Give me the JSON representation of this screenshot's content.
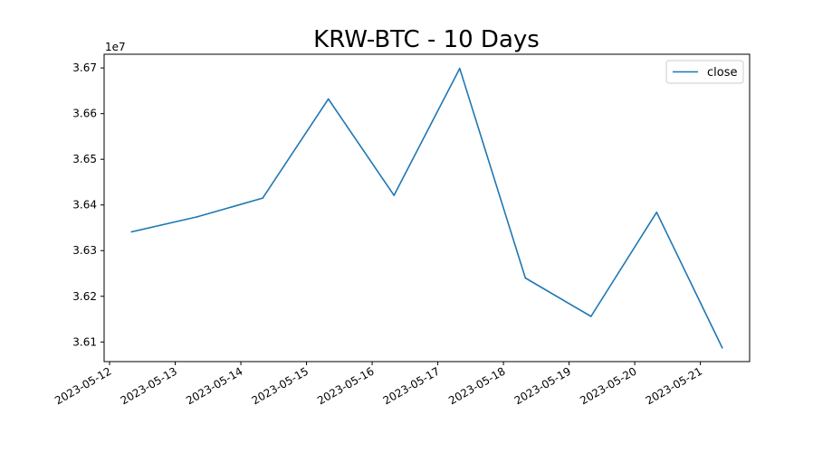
{
  "chart_data": {
    "type": "line",
    "title": "KRW-BTC - 10 Days",
    "xlabel": "",
    "ylabel": "",
    "y_offset_label": "1e7",
    "y_multiplier": 10000000,
    "x": [
      "2023-05-12 08:00",
      "2023-05-13 08:00",
      "2023-05-14 08:00",
      "2023-05-15 08:00",
      "2023-05-16 08:00",
      "2023-05-17 08:00",
      "2023-05-18 08:00",
      "2023-05-19 08:00",
      "2023-05-20 08:00",
      "2023-05-21 08:00"
    ],
    "series": [
      {
        "name": "close",
        "color": "#1f77b4",
        "values": [
          3.6341,
          3.6374,
          3.6415,
          3.6632,
          3.6421,
          3.6699,
          3.624,
          3.6156,
          3.6384,
          3.6087
        ]
      }
    ],
    "xlim": [
      "2023-05-11 22:00",
      "2023-05-21 18:00"
    ],
    "ylim": [
      3.6057,
      3.673
    ],
    "x_ticks": [
      "2023-05-12",
      "2023-05-13",
      "2023-05-14",
      "2023-05-15",
      "2023-05-16",
      "2023-05-17",
      "2023-05-18",
      "2023-05-19",
      "2023-05-20",
      "2023-05-21"
    ],
    "y_ticks": [
      "3.61",
      "3.62",
      "3.63",
      "3.64",
      "3.65",
      "3.66",
      "3.67"
    ],
    "grid": false,
    "legend_position": "top-right"
  }
}
